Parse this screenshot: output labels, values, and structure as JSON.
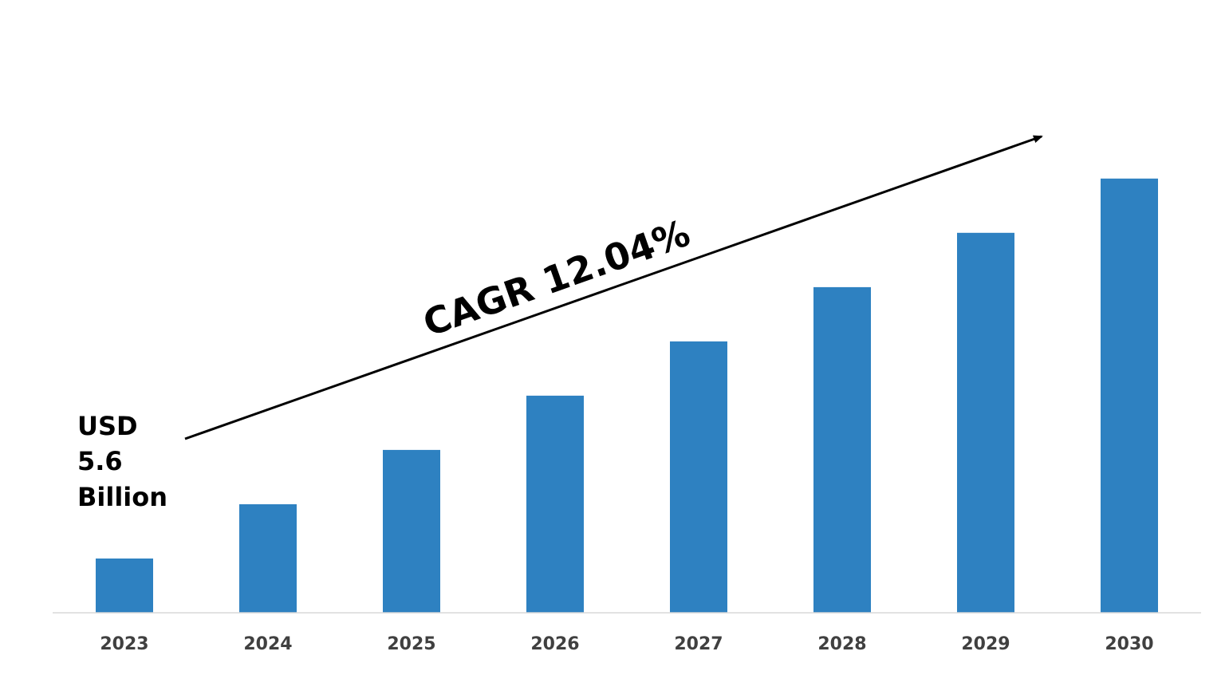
{
  "chart_data": {
    "type": "bar",
    "categories": [
      "2023",
      "2024",
      "2025",
      "2026",
      "2027",
      "2028",
      "2029",
      "2030"
    ],
    "values": [
      1,
      2,
      3,
      4,
      5,
      6,
      7,
      8
    ],
    "title": "",
    "xlabel": "",
    "ylabel": "",
    "ylim": [
      0,
      8.35
    ],
    "grid": false,
    "legend": "none",
    "bar_color": "#2E81C1",
    "axis_color": "#D9D9D9",
    "annotations": {
      "cagr": "CAGR 12.04%",
      "start_value_lines": [
        "USD",
        "5.6",
        "Billion"
      ]
    }
  }
}
